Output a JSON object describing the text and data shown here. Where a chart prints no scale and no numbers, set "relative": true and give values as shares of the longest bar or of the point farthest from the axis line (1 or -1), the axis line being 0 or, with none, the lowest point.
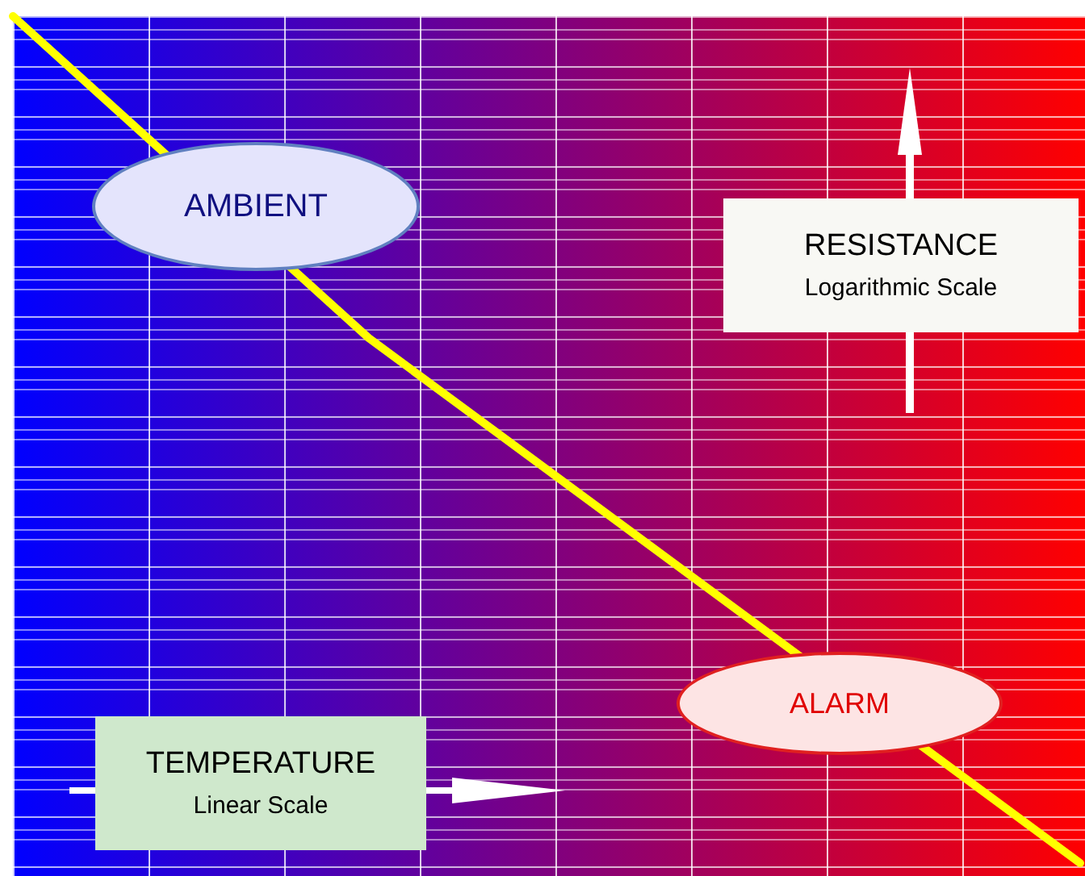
{
  "chart_data": {
    "type": "line",
    "relative": true,
    "categories": [
      null,
      null,
      null,
      null
    ],
    "series": [
      {
        "color": "#ffff00",
        "values": [
          1,
          0.62,
          0.31,
          0
        ]
      }
    ],
    "marker": "none",
    "line_style": "solid",
    "annotations": [
      "AMBIENT",
      "ALARM",
      "RESISTANCE",
      "Logarithmic Scale",
      "TEMPERATURE",
      "Linear Scale"
    ]
  }
}
